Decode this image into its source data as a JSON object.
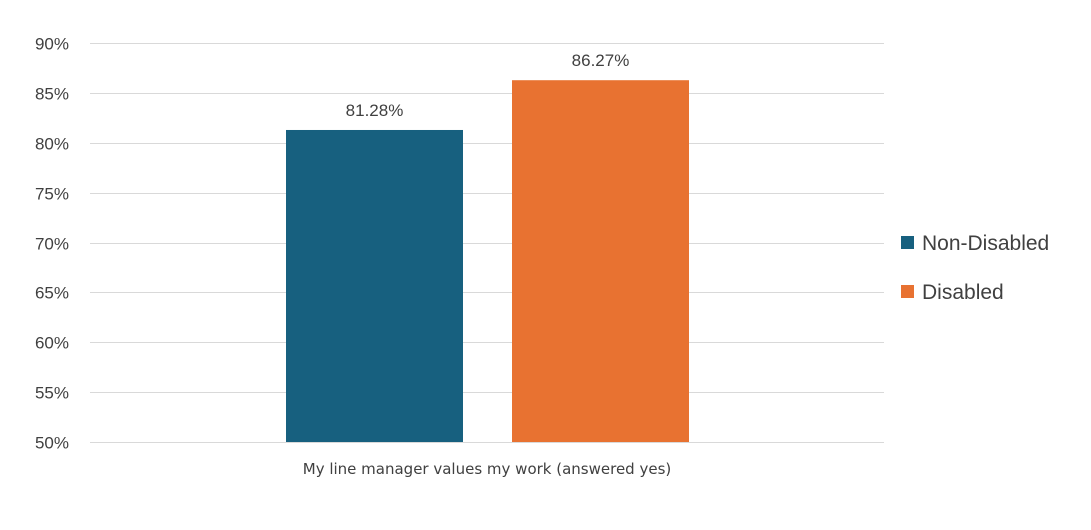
{
  "chart_data": {
    "type": "bar",
    "title": "",
    "xlabel": "",
    "ylabel": "",
    "categories": [
      "My line manager values my work (answered yes)"
    ],
    "series": [
      {
        "name": "Non-Disabled",
        "values": [
          81.28
        ],
        "color": "#17607f",
        "label": "81.28%"
      },
      {
        "name": "Disabled",
        "values": [
          86.27
        ],
        "color": "#e87231",
        "label": "86.27%"
      }
    ],
    "ylim": [
      50,
      90
    ],
    "yticks": [
      50,
      55,
      60,
      65,
      70,
      75,
      80,
      85,
      90
    ],
    "ytick_labels": [
      "50%",
      "55%",
      "60%",
      "65%",
      "70%",
      "75%",
      "80%",
      "85%",
      "90%"
    ],
    "grid": true,
    "legend_position": "right"
  }
}
